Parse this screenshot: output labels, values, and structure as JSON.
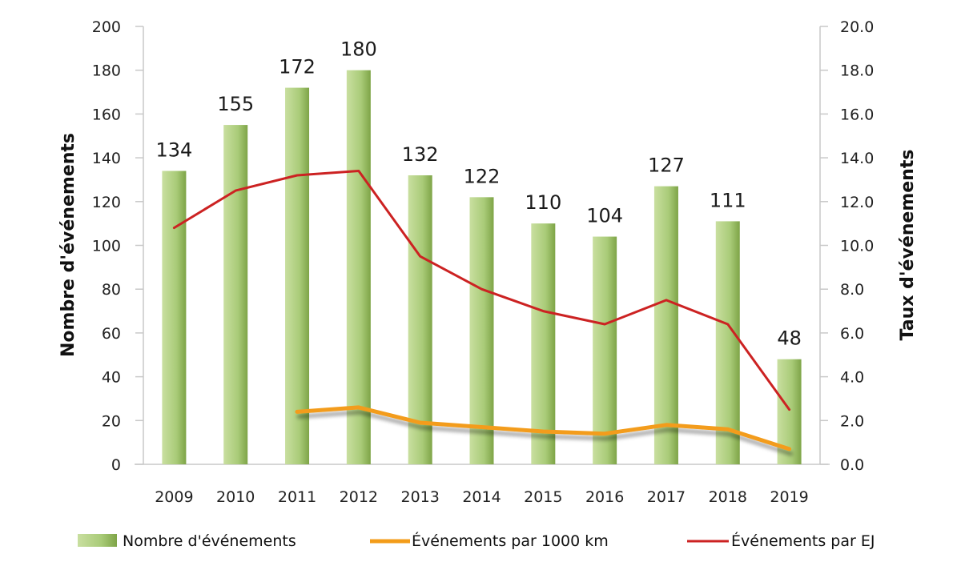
{
  "chart_data": {
    "type": "bar",
    "categories": [
      "2009",
      "2010",
      "2011",
      "2012",
      "2013",
      "2014",
      "2015",
      "2016",
      "2017",
      "2018",
      "2019"
    ],
    "series": [
      {
        "name": "Nombre d'événements",
        "type": "bar",
        "axis": "left",
        "color": "#9cc26a",
        "values": [
          134,
          155,
          172,
          180,
          132,
          122,
          110,
          104,
          127,
          111,
          48
        ]
      },
      {
        "name": "Événements par 1000 km",
        "type": "line",
        "axis": "right",
        "color": "#f39c1a",
        "values": [
          null,
          null,
          2.4,
          2.6,
          1.9,
          1.7,
          1.5,
          1.4,
          1.8,
          1.6,
          0.7
        ]
      },
      {
        "name": "Événements par EJ",
        "type": "line",
        "axis": "right",
        "color": "#cc2222",
        "values": [
          10.8,
          12.5,
          13.2,
          13.4,
          9.5,
          8.0,
          7.0,
          6.4,
          7.5,
          6.4,
          2.5
        ]
      }
    ],
    "data_labels": [
      "134",
      "155",
      "172",
      "180",
      "132",
      "122",
      "110",
      "104",
      "127",
      "111",
      "48"
    ],
    "ylabel": "Nombre d'événements",
    "y2label": "Taux d'événements",
    "ylim": [
      0,
      200
    ],
    "y2lim": [
      0,
      20
    ],
    "yticks": [
      "0",
      "20",
      "40",
      "60",
      "80",
      "100",
      "120",
      "140",
      "160",
      "180",
      "200"
    ],
    "y2ticks": [
      "0.0",
      "2.0",
      "4.0",
      "6.0",
      "8.0",
      "10.0",
      "12.0",
      "14.0",
      "16.0",
      "18.0",
      "20.0"
    ],
    "grid": false,
    "legend_position": "bottom"
  }
}
